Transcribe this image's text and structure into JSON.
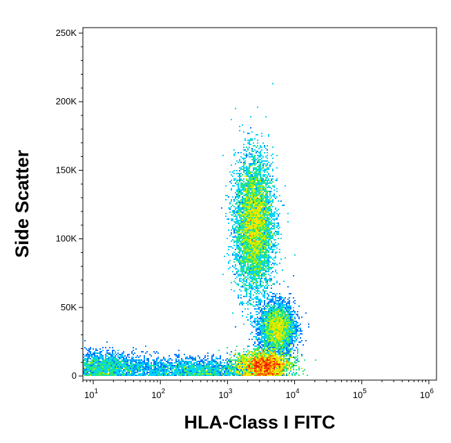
{
  "chart_data": {
    "type": "scatter",
    "subtype": "flow-cytometry density dot plot",
    "title": "",
    "xlabel": "HLA-Class I FITC",
    "ylabel": "Side Scatter",
    "x_scale": "log",
    "y_scale": "linear",
    "xlim": [
      7,
      1300000
    ],
    "ylim": [
      -3000,
      254000
    ],
    "y_ticks": [
      {
        "value": 0,
        "label": "0"
      },
      {
        "value": 50000,
        "label": "50K"
      },
      {
        "value": 100000,
        "label": "100K"
      },
      {
        "value": 150000,
        "label": "150K"
      },
      {
        "value": 200000,
        "label": "200K"
      },
      {
        "value": 250000,
        "label": "250K"
      }
    ],
    "x_ticks": [
      {
        "value": 10,
        "base": "10",
        "exp": "1"
      },
      {
        "value": 100,
        "base": "10",
        "exp": "2"
      },
      {
        "value": 1000,
        "base": "10",
        "exp": "3"
      },
      {
        "value": 10000,
        "base": "10",
        "exp": "4"
      },
      {
        "value": 100000,
        "base": "10",
        "exp": "5"
      },
      {
        "value": 1000000,
        "base": "10",
        "exp": "6"
      }
    ],
    "grid": false,
    "legend": "none",
    "colormap": [
      "#0000ff",
      "#0078ff",
      "#00d2ff",
      "#28e678",
      "#b4f000",
      "#ffe600",
      "#ff7800",
      "#f01e00"
    ],
    "populations": [
      {
        "x_center": 2500,
        "x_log_spread": 0.14,
        "y_center": 110000,
        "y_spread": 24000,
        "relative_count": 0.38
      },
      {
        "x_center": 3500,
        "x_log_spread": 0.2,
        "y_center": 8000,
        "y_spread": 5000,
        "relative_count": 0.33
      },
      {
        "x_center": 5500,
        "x_log_spread": 0.13,
        "y_center": 35000,
        "y_spread": 9000,
        "relative_count": 0.14
      },
      {
        "x_center": 12,
        "x_log_spread": 0.35,
        "y_center": 7000,
        "y_spread": 5000,
        "relative_count": 0.08
      },
      {
        "x_center": 300,
        "x_log_spread": 0.5,
        "y_center": 5000,
        "y_spread": 4000,
        "relative_count": 0.07
      }
    ]
  }
}
